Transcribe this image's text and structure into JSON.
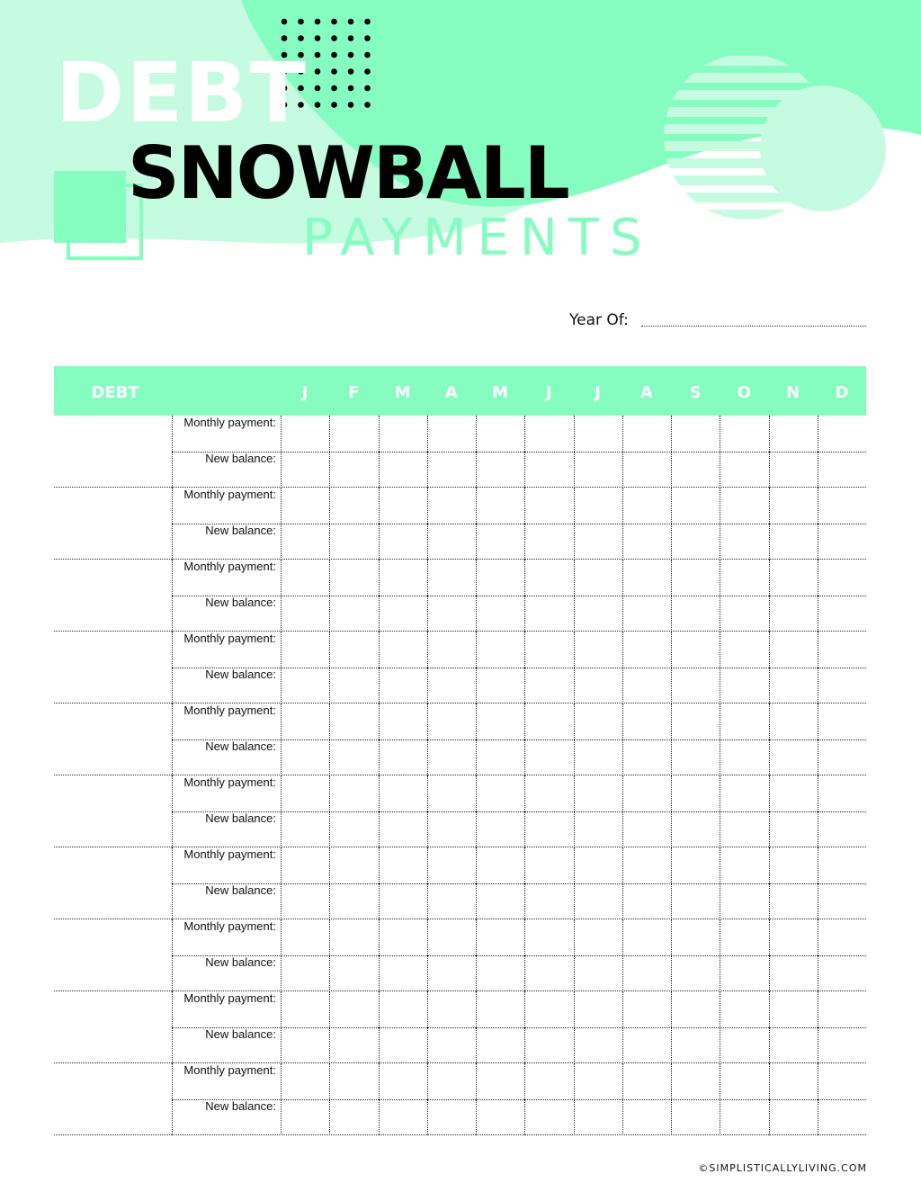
{
  "title": {
    "line1": "DEBT",
    "line2": "SNOWBALL",
    "line3": "PAYMENTS"
  },
  "year_label": "Year Of:",
  "table": {
    "debt_header": "DEBT",
    "months": [
      "J",
      "F",
      "M",
      "A",
      "M",
      "J",
      "J",
      "A",
      "S",
      "O",
      "N",
      "D"
    ],
    "rows": [
      {
        "monthly": "Monthly payment:",
        "balance": "New balance:"
      },
      {
        "monthly": "Monthly payment:",
        "balance": "New balance:"
      },
      {
        "monthly": "Monthly payment:",
        "balance": "New balance:"
      },
      {
        "monthly": "Monthly payment:",
        "balance": "New balance:"
      },
      {
        "monthly": "Monthly payment:",
        "balance": "New balance:"
      },
      {
        "monthly": "Monthly payment:",
        "balance": "New balance:"
      },
      {
        "monthly": "Monthly payment:",
        "balance": "New balance:"
      },
      {
        "monthly": "Monthly payment:",
        "balance": "New balance:"
      },
      {
        "monthly": "Monthly payment:",
        "balance": "New balance:"
      },
      {
        "monthly": "Monthly payment:",
        "balance": "New balance:"
      }
    ]
  },
  "footer": "©SIMPLISTICALLYLIVING.COM",
  "colors": {
    "accent": "#86fdc0",
    "accent_light": "#c5fbe0"
  }
}
